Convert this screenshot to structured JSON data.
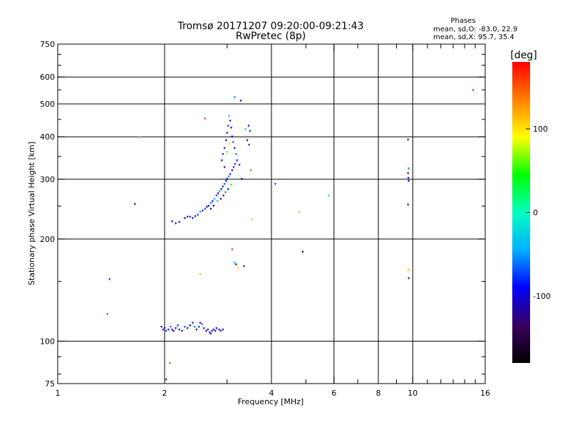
{
  "chart_data": {
    "type": "scatter",
    "title": "Tromsø 20171207 09:20:00-09:21:43",
    "subtitle": "RwPretec (8p)",
    "info_heading": "Phases",
    "info_line1": "mean, sd,O: -83.0, 22.9",
    "info_line2": "mean, sd,X:  95.7, 35.4",
    "xlabel": "Frequency [MHz]",
    "ylabel": "Stationary phase Virtual Height [km]",
    "x_scale": "log",
    "y_scale": "log",
    "xlim": [
      1,
      16
    ],
    "ylim": [
      75,
      750
    ],
    "xticks": [
      1,
      2,
      4,
      6,
      8,
      10,
      16
    ],
    "xtick_labels": [
      "1",
      "2",
      "4",
      "6",
      "8",
      "10",
      "16"
    ],
    "xgrid": [
      2,
      4,
      6,
      8,
      10
    ],
    "yticks": [
      75,
      100,
      200,
      300,
      400,
      500,
      600,
      750
    ],
    "ytick_labels": [
      "75",
      "100",
      "200",
      "300",
      "400",
      "500",
      "600",
      "750"
    ],
    "ygrid": [
      100,
      200,
      300,
      400,
      500,
      600
    ],
    "grid": true,
    "colorbar": {
      "label": "[deg]",
      "range": [
        -180,
        180
      ],
      "ticks": [
        100,
        0,
        -100
      ],
      "tick_labels": [
        "100",
        "0",
        "-100"
      ],
      "colors": [
        "#000000",
        "#3a0060",
        "#0000ff",
        "#00b0ff",
        "#00ffc0",
        "#00ff00",
        "#ffff00",
        "#ff8000",
        "#ff0000"
      ]
    },
    "points": [
      [
        1.4,
        152,
        -80
      ],
      [
        1.38,
        120,
        160
      ],
      [
        1.65,
        253,
        -130
      ],
      [
        1.7,
        398,
        140
      ],
      [
        1.96,
        110,
        -110
      ],
      [
        1.98,
        108,
        -90
      ],
      [
        2.0,
        109,
        -120
      ],
      [
        2.02,
        107,
        -80
      ],
      [
        2.05,
        108,
        -100
      ],
      [
        2.08,
        110,
        -60
      ],
      [
        2.1,
        108,
        -110
      ],
      [
        2.12,
        107,
        -90
      ],
      [
        2.15,
        109,
        -100
      ],
      [
        2.18,
        111,
        -80
      ],
      [
        2.2,
        108,
        -120
      ],
      [
        2.24,
        107,
        -100
      ],
      [
        2.28,
        110,
        -70
      ],
      [
        2.32,
        109,
        -100
      ],
      [
        2.36,
        111,
        -90
      ],
      [
        2.4,
        113,
        -110
      ],
      [
        2.43,
        110,
        -60
      ],
      [
        2.46,
        108,
        -120
      ],
      [
        2.5,
        110,
        -80
      ],
      [
        2.52,
        113,
        -100
      ],
      [
        2.55,
        112,
        -70
      ],
      [
        2.58,
        109,
        -110
      ],
      [
        2.62,
        107,
        -100
      ],
      [
        2.65,
        108,
        -120
      ],
      [
        2.68,
        106,
        -90
      ],
      [
        2.7,
        105,
        -100
      ],
      [
        2.72,
        107,
        -110
      ],
      [
        2.75,
        108,
        -120
      ],
      [
        2.78,
        107,
        -100
      ],
      [
        2.8,
        109,
        -90
      ],
      [
        2.85,
        108,
        -110
      ],
      [
        2.88,
        107,
        -120
      ],
      [
        2.92,
        108,
        -100
      ],
      [
        2.02,
        77,
        -140
      ],
      [
        2.07,
        86,
        150
      ],
      [
        2.1,
        225,
        -110
      ],
      [
        2.15,
        222,
        -90
      ],
      [
        2.2,
        224,
        -140
      ],
      [
        2.28,
        230,
        -120
      ],
      [
        2.32,
        232,
        -100
      ],
      [
        2.36,
        232,
        -130
      ],
      [
        2.4,
        230,
        -90
      ],
      [
        2.44,
        233,
        -110
      ],
      [
        2.48,
        235,
        -80
      ],
      [
        2.52,
        240,
        -60
      ],
      [
        2.56,
        242,
        -100
      ],
      [
        2.6,
        245,
        -70
      ],
      [
        2.63,
        248,
        -120
      ],
      [
        2.66,
        250,
        -90
      ],
      [
        2.7,
        255,
        -60
      ],
      [
        2.73,
        258,
        -100
      ],
      [
        2.76,
        262,
        -30
      ],
      [
        2.8,
        268,
        -80
      ],
      [
        2.83,
        272,
        -110
      ],
      [
        2.86,
        276,
        -50
      ],
      [
        2.89,
        280,
        -90
      ],
      [
        2.92,
        285,
        -120
      ],
      [
        2.95,
        290,
        -70
      ],
      [
        2.98,
        296,
        -100
      ],
      [
        3.0,
        300,
        -110
      ],
      [
        3.03,
        305,
        -60
      ],
      [
        3.06,
        310,
        -90
      ],
      [
        3.1,
        318,
        -120
      ],
      [
        3.13,
        325,
        -100
      ],
      [
        3.16,
        332,
        -80
      ],
      [
        2.7,
        245,
        -110
      ],
      [
        2.75,
        250,
        -130
      ],
      [
        2.82,
        258,
        -40
      ],
      [
        2.88,
        262,
        -100
      ],
      [
        2.93,
        268,
        -120
      ],
      [
        2.97,
        274,
        -60
      ],
      [
        3.02,
        280,
        -90
      ],
      [
        3.08,
        288,
        40
      ],
      [
        2.9,
        340,
        -110
      ],
      [
        2.92,
        355,
        -100
      ],
      [
        2.95,
        370,
        -120
      ],
      [
        2.98,
        390,
        -90
      ],
      [
        3.0,
        410,
        -100
      ],
      [
        3.02,
        430,
        -80
      ],
      [
        3.04,
        460,
        -40
      ],
      [
        3.06,
        445,
        -120
      ],
      [
        3.08,
        425,
        -100
      ],
      [
        3.1,
        400,
        -90
      ],
      [
        3.12,
        385,
        -70
      ],
      [
        3.15,
        370,
        -110
      ],
      [
        3.18,
        355,
        -60
      ],
      [
        3.2,
        340,
        -90
      ],
      [
        3.0,
        360,
        60
      ],
      [
        3.05,
        380,
        100
      ],
      [
        2.95,
        325,
        -130
      ],
      [
        3.25,
        330,
        -110
      ],
      [
        3.15,
        522,
        -60
      ],
      [
        3.28,
        510,
        -100
      ],
      [
        3.45,
        430,
        -100
      ],
      [
        3.48,
        415,
        -80
      ],
      [
        3.42,
        390,
        -110
      ],
      [
        3.46,
        378,
        -100
      ],
      [
        3.38,
        420,
        -40
      ],
      [
        3.5,
        318,
        150
      ],
      [
        3.52,
        228,
        110
      ],
      [
        3.3,
        300,
        -90
      ],
      [
        2.6,
        452,
        160
      ],
      [
        3.1,
        186,
        160
      ],
      [
        3.15,
        170,
        -40
      ],
      [
        3.18,
        168,
        -150
      ],
      [
        3.22,
        164,
        110
      ],
      [
        3.35,
        166,
        -130
      ],
      [
        2.52,
        157,
        120
      ],
      [
        4.1,
        290,
        -70
      ],
      [
        4.8,
        240,
        115
      ],
      [
        4.9,
        183,
        -170
      ],
      [
        5.8,
        268,
        -20
      ],
      [
        9.7,
        392,
        -130
      ],
      [
        9.75,
        322,
        -60
      ],
      [
        9.7,
        312,
        -110
      ],
      [
        9.72,
        302,
        -100
      ],
      [
        9.74,
        296,
        -120
      ],
      [
        9.7,
        252,
        -150
      ],
      [
        9.72,
        162,
        120
      ],
      [
        9.74,
        153,
        -140
      ],
      [
        14.8,
        548,
        170
      ]
    ]
  }
}
